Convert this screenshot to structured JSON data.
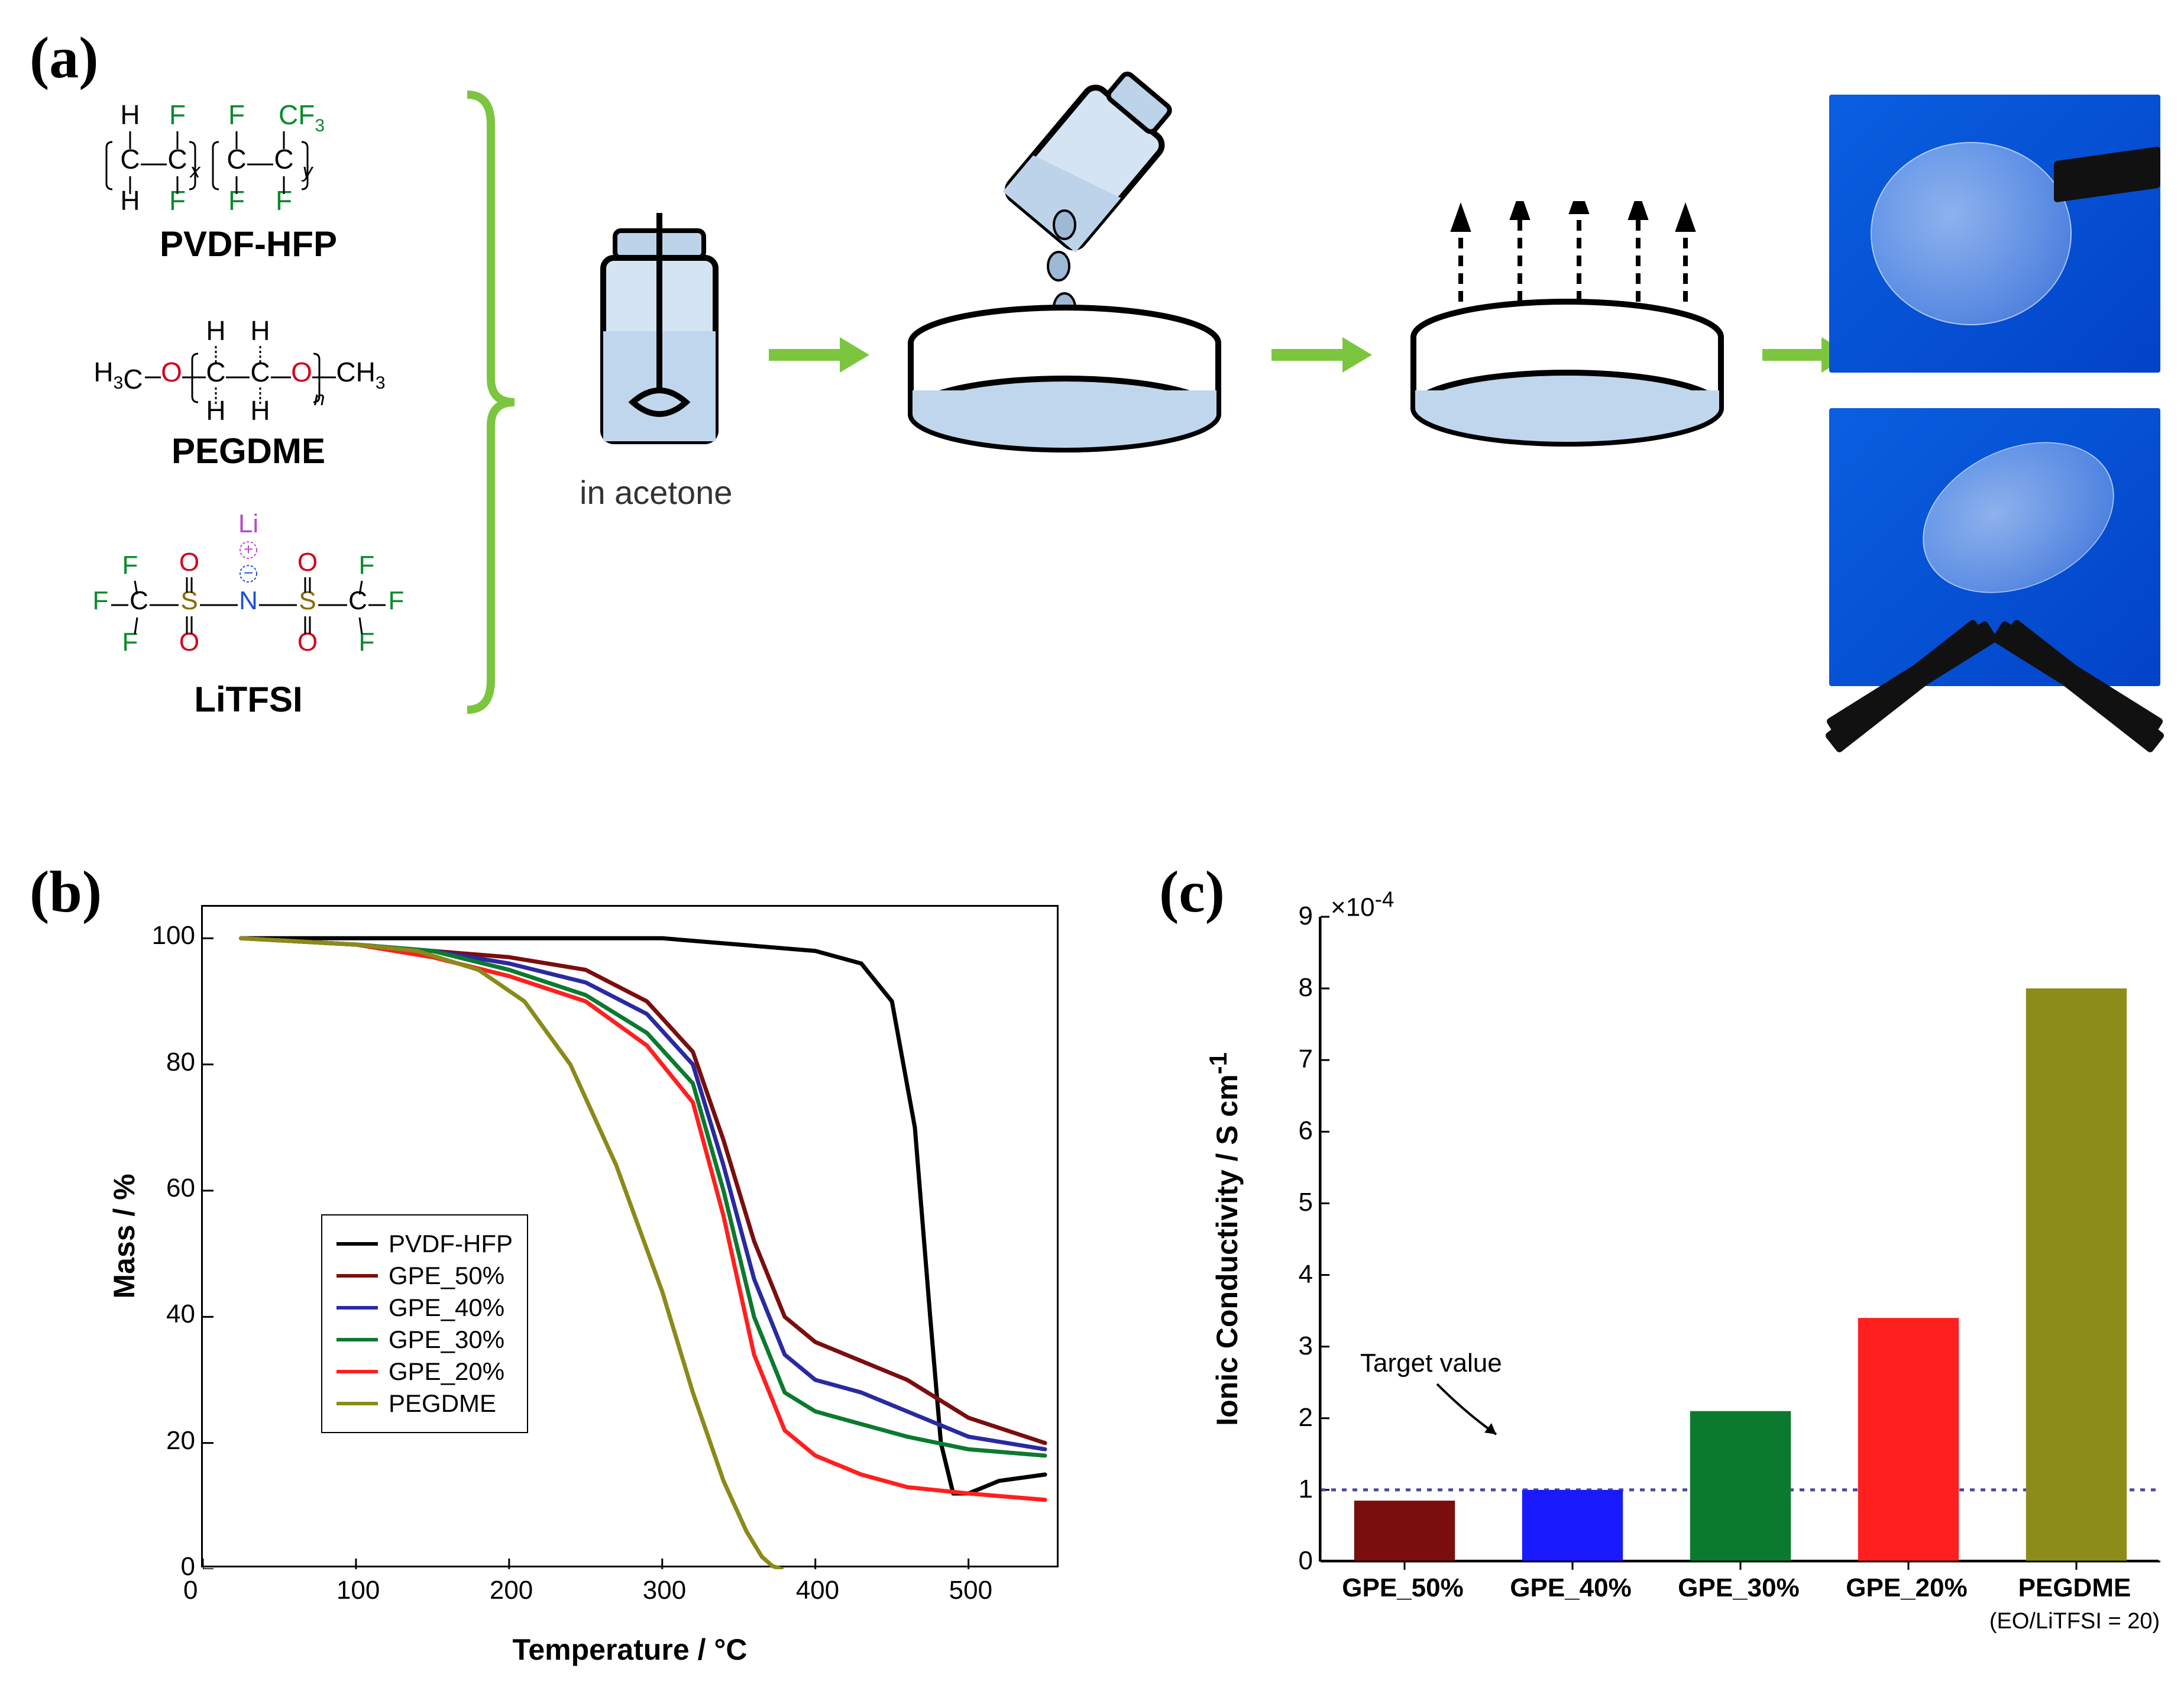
{
  "panel_labels": {
    "a": "(a)",
    "b": "(b)",
    "c": "(c)"
  },
  "panel_a": {
    "chemicals": [
      {
        "name": "PVDF-HFP"
      },
      {
        "name": "PEGDME"
      },
      {
        "name": "LiTFSI"
      }
    ],
    "step_caption": "in acetone",
    "bracket_color": "#7cc63f",
    "arrow_color": "#7cc63f",
    "atom_colors": {
      "H": "#000000",
      "C": "#000000",
      "F": "#0b8a2d",
      "O": "#d0021b",
      "N": "#1c4fd8",
      "S": "#8a6a00",
      "Li": "#b54cc7"
    }
  },
  "panel_b": {
    "type": "line",
    "x_label": "Temperature / °C",
    "y_label": "Mass / %",
    "xlim": [
      0,
      560
    ],
    "ylim": [
      0,
      105
    ],
    "xticks": [
      0,
      100,
      200,
      300,
      400,
      500
    ],
    "yticks": [
      0,
      20,
      40,
      60,
      80,
      100
    ],
    "background_color": "#ffffff",
    "axis_color": "#000000",
    "tick_fontsize": 44,
    "label_fontsize": 50,
    "line_width": 7,
    "legend": [
      {
        "label": "PVDF-HFP",
        "color": "#000000"
      },
      {
        "label": "GPE_50%",
        "color": "#7a0e0e"
      },
      {
        "label": "GPE_40%",
        "color": "#2a2aa0"
      },
      {
        "label": "GPE_30%",
        "color": "#0b7a2e"
      },
      {
        "label": "GPE_20%",
        "color": "#ff1f1f"
      },
      {
        "label": "PEGDME",
        "color": "#8a8a1a"
      }
    ],
    "series": {
      "PVDF-HFP": {
        "color": "#000000",
        "x": [
          25,
          100,
          200,
          300,
          350,
          400,
          430,
          450,
          465,
          475,
          482,
          490,
          500,
          520,
          550
        ],
        "y": [
          100,
          100,
          100,
          100,
          99,
          98,
          96,
          90,
          70,
          40,
          20,
          12,
          12,
          14,
          15
        ]
      },
      "GPE_50": {
        "color": "#7a0e0e",
        "x": [
          25,
          100,
          150,
          200,
          250,
          290,
          320,
          340,
          360,
          380,
          400,
          430,
          460,
          500,
          550
        ],
        "y": [
          100,
          99,
          98,
          97,
          95,
          90,
          82,
          68,
          52,
          40,
          36,
          33,
          30,
          24,
          20
        ]
      },
      "GPE_40": {
        "color": "#2a2aa0",
        "x": [
          25,
          100,
          150,
          200,
          250,
          290,
          320,
          340,
          360,
          380,
          400,
          430,
          460,
          500,
          550
        ],
        "y": [
          100,
          99,
          98,
          96,
          93,
          88,
          80,
          64,
          46,
          34,
          30,
          28,
          25,
          21,
          19
        ]
      },
      "GPE_30": {
        "color": "#0b7a2e",
        "x": [
          25,
          100,
          150,
          200,
          250,
          290,
          320,
          340,
          360,
          380,
          400,
          430,
          460,
          500,
          550
        ],
        "y": [
          100,
          99,
          98,
          95,
          91,
          85,
          77,
          60,
          40,
          28,
          25,
          23,
          21,
          19,
          18
        ]
      },
      "GPE_20": {
        "color": "#ff1f1f",
        "x": [
          25,
          100,
          150,
          200,
          250,
          290,
          320,
          340,
          360,
          380,
          400,
          430,
          460,
          500,
          550
        ],
        "y": [
          100,
          99,
          97,
          94,
          90,
          83,
          74,
          56,
          34,
          22,
          18,
          15,
          13,
          12,
          11
        ]
      },
      "PEGDME": {
        "color": "#8a8a1a",
        "x": [
          25,
          100,
          140,
          180,
          210,
          240,
          270,
          300,
          320,
          340,
          355,
          365,
          372,
          378
        ],
        "y": [
          100,
          99,
          98,
          95,
          90,
          80,
          64,
          44,
          28,
          14,
          6,
          2,
          0.5,
          0
        ]
      }
    }
  },
  "panel_c": {
    "type": "bar",
    "y_label": "Ionic Conductivity  / S cm",
    "y_label_superscript": "-1",
    "exponent_text": "×10",
    "exponent_sup": "-4",
    "ylim": [
      0,
      9
    ],
    "yticks": [
      0,
      1,
      2,
      3,
      4,
      5,
      6,
      7,
      8,
      9
    ],
    "ytick_fontsize": 44,
    "label_fontsize": 50,
    "background_color": "#ffffff",
    "axis_color": "#000000",
    "target_line": {
      "y": 1,
      "color": "#4a4aa0",
      "dash": "8 10",
      "width": 5
    },
    "target_label": "Target value",
    "categories": [
      {
        "key": "GPE_50",
        "label": "GPE_50%",
        "value": 0.85,
        "color": "#7a0e0e"
      },
      {
        "key": "GPE_40",
        "label": "GPE_40%",
        "value": 1.0,
        "color": "#1a1aff"
      },
      {
        "key": "GPE_30",
        "label": "GPE_30%",
        "value": 2.1,
        "color": "#0b7a2e"
      },
      {
        "key": "GPE_20",
        "label": "GPE_20%",
        "value": 3.4,
        "color": "#ff1f1f"
      },
      {
        "key": "PEGDME",
        "label": "PEGDME",
        "value": 8.0,
        "color": "#8c8c1a",
        "sublabel": "(EO/LiTFSI = 20)"
      }
    ],
    "bar_width": 0.6
  }
}
